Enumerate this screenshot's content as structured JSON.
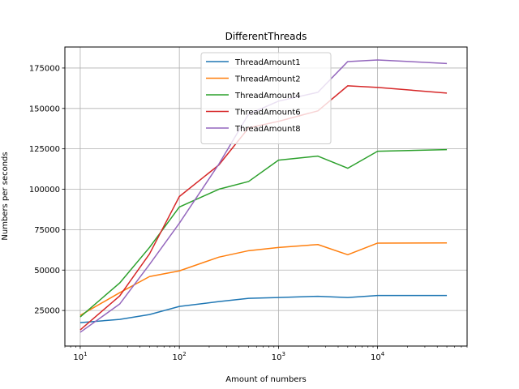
{
  "chart_data": {
    "type": "line",
    "title": "DifferentThreads",
    "xlabel": "Amount of numbers",
    "ylabel": "Numbers per seconds",
    "xscale": "log",
    "xlim": [
      7,
      80000
    ],
    "ylim": [
      3000,
      188000
    ],
    "xticks": [
      10,
      100,
      1000,
      10000
    ],
    "xtick_labels": [
      {
        "base": "10",
        "exp": "1"
      },
      {
        "base": "10",
        "exp": "2"
      },
      {
        "base": "10",
        "exp": "3"
      },
      {
        "base": "10",
        "exp": "4"
      }
    ],
    "yticks": [
      25000,
      50000,
      75000,
      100000,
      125000,
      150000,
      175000
    ],
    "ytick_labels": [
      "25000",
      "50000",
      "75000",
      "100000",
      "125000",
      "150000",
      "175000"
    ],
    "grid": true,
    "legend_position": "top-center",
    "x": [
      10,
      25,
      50,
      100,
      250,
      500,
      1000,
      2500,
      5000,
      10000,
      50000
    ],
    "series": [
      {
        "name": "ThreadAmount1",
        "color": "#1f77b4",
        "values": [
          17500,
          19500,
          22500,
          27500,
          30500,
          32500,
          33000,
          33800,
          33000,
          34300,
          34300
        ]
      },
      {
        "name": "ThreadAmount2",
        "color": "#ff7f0e",
        "values": [
          22000,
          36000,
          46000,
          49500,
          58000,
          62000,
          64000,
          65800,
          59500,
          66700,
          66800
        ]
      },
      {
        "name": "ThreadAmount4",
        "color": "#2ca02c",
        "values": [
          21000,
          42000,
          64000,
          89000,
          100000,
          104800,
          118000,
          120500,
          113000,
          123500,
          124500
        ]
      },
      {
        "name": "ThreadAmount6",
        "color": "#d62728",
        "values": [
          13000,
          34000,
          60000,
          95500,
          115000,
          138000,
          142000,
          148500,
          164000,
          163000,
          159500
        ]
      },
      {
        "name": "ThreadAmount8",
        "color": "#9467bd",
        "values": [
          11500,
          29000,
          53500,
          79000,
          115500,
          146500,
          154500,
          160000,
          179000,
          180000,
          177800
        ]
      }
    ]
  }
}
